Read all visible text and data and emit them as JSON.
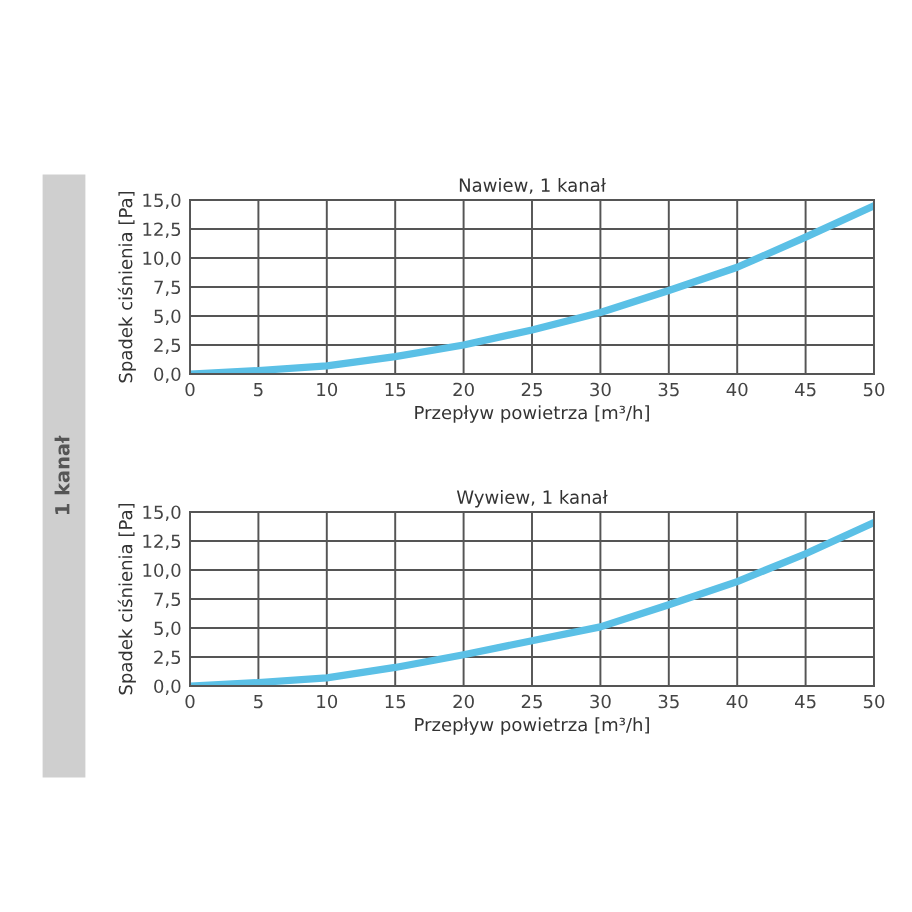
{
  "chart_data": [
    {
      "type": "line",
      "title": "Nawiew, 1 kanał",
      "xlabel": "Przepływ powietrza [m³/h]",
      "ylabel": "Spadek ciśnienia [Pa]",
      "annotations": [
        "1 kanał"
      ],
      "x": [
        0,
        5,
        10,
        15,
        20,
        25,
        30,
        35,
        40,
        45,
        50
      ],
      "series": [
        {
          "color": "#5bc0e6",
          "values": [
            0,
            0.3,
            0.7,
            1.5,
            2.5,
            3.8,
            5.3,
            7.2,
            9.2,
            11.8,
            14.5
          ]
        }
      ],
      "xlim": [
        0,
        50
      ],
      "xticks": [
        0,
        5,
        10,
        15,
        20,
        25,
        30,
        35,
        40,
        45,
        50
      ],
      "ylim": [
        0,
        15
      ],
      "yticks": [
        {
          "value": 0,
          "label": "0,0"
        },
        {
          "value": 2.5,
          "label": "2,5"
        },
        {
          "value": 5,
          "label": "5,0"
        },
        {
          "value": 7.5,
          "label": "7,5"
        },
        {
          "value": 10,
          "label": "10,0"
        },
        {
          "value": 12.5,
          "label": "12,5"
        },
        {
          "value": 15,
          "label": "15,0"
        }
      ],
      "grid": true,
      "marker": "none",
      "line_style": "solid"
    },
    {
      "type": "line",
      "title": "Wywiew, 1 kanał",
      "xlabel": "Przepływ powietrza [m³/h]",
      "ylabel": "Spadek ciśnienia [Pa]",
      "x": [
        0,
        5,
        10,
        15,
        20,
        25,
        30,
        35,
        40,
        45,
        50
      ],
      "series": [
        {
          "color": "#5bc0e6",
          "values": [
            0,
            0.3,
            0.7,
            1.6,
            2.7,
            3.9,
            5.1,
            7.0,
            9.0,
            11.4,
            14.1
          ]
        }
      ],
      "xlim": [
        0,
        50
      ],
      "xticks": [
        0,
        5,
        10,
        15,
        20,
        25,
        30,
        35,
        40,
        45,
        50
      ],
      "ylim": [
        0,
        15
      ],
      "yticks": [
        {
          "value": 0,
          "label": "0,0"
        },
        {
          "value": 2.5,
          "label": "2,5"
        },
        {
          "value": 5,
          "label": "5,0"
        },
        {
          "value": 7.5,
          "label": "7,5"
        },
        {
          "value": 10,
          "label": "10,0"
        },
        {
          "value": 12.5,
          "label": "12,5"
        },
        {
          "value": 15,
          "label": "15,0"
        }
      ],
      "grid": true,
      "marker": "none",
      "line_style": "solid"
    }
  ]
}
